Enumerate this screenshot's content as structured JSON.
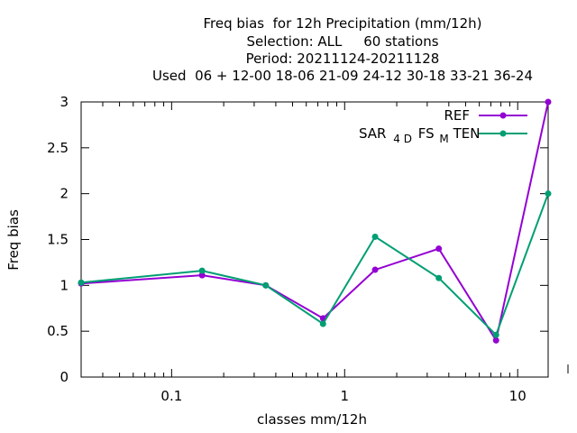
{
  "title_lines": [
    "Freq bias  for 12h Precipitation (mm/12h)",
    "Selection: ALL     60 stations",
    "Period: 20211124-20211128",
    "Used  06 + 12-00 18-06 21-09 24-12 30-18 33-21 36-24"
  ],
  "chart_data": {
    "type": "line",
    "xlabel": "classes mm/12h",
    "ylabel": "Freq bias",
    "xscale": "log",
    "xlim": [
      0.03,
      15
    ],
    "ylim": [
      0,
      3
    ],
    "x_ticks": [
      {
        "value": 0.1,
        "label": "0.1"
      },
      {
        "value": 1,
        "label": "1"
      },
      {
        "value": 10,
        "label": "10"
      }
    ],
    "y_ticks": [
      {
        "value": 0,
        "label": "0"
      },
      {
        "value": 0.5,
        "label": "0.5"
      },
      {
        "value": 1,
        "label": "1"
      },
      {
        "value": 1.5,
        "label": "1.5"
      },
      {
        "value": 2,
        "label": "2"
      },
      {
        "value": 2.5,
        "label": "2.5"
      },
      {
        "value": 3,
        "label": "3"
      }
    ],
    "x": [
      0.03,
      0.15,
      0.35,
      0.75,
      1.5,
      3.5,
      7.5,
      15
    ],
    "series": [
      {
        "name": "REF",
        "color": "#9400d3",
        "values": [
          1.02,
          1.11,
          1.0,
          0.64,
          1.17,
          1.4,
          0.4,
          3.0
        ]
      },
      {
        "name": "SAR_4DFS_MTEN",
        "color": "#009e73",
        "values": [
          1.03,
          1.16,
          1.0,
          0.58,
          1.53,
          1.08,
          0.46,
          2.0
        ]
      }
    ],
    "legend": {
      "position": "top-right",
      "entries": [
        {
          "label": "REF"
        },
        {
          "label_parts": [
            "SAR",
            "4 D",
            "FS",
            "M",
            "TEN"
          ]
        }
      ]
    },
    "grid": false
  }
}
